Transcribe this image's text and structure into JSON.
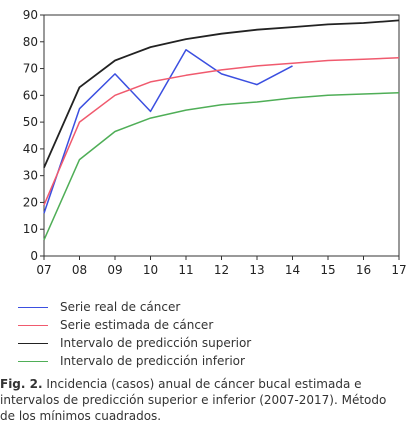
{
  "chart_data": {
    "type": "line",
    "x": [
      "07",
      "08",
      "09",
      "10",
      "11",
      "12",
      "13",
      "14",
      "15",
      "16",
      "17"
    ],
    "ylim": [
      0,
      90
    ],
    "yticks": [
      0,
      10,
      20,
      30,
      40,
      50,
      60,
      70,
      80,
      90
    ],
    "grid": false,
    "series": [
      {
        "name": "Serie real de cáncer",
        "color": "#3b4fe0",
        "values": [
          16,
          55,
          68,
          54,
          77,
          68,
          64,
          71,
          null,
          null,
          null
        ]
      },
      {
        "name": "Serie estimada de cáncer",
        "color": "#f05a6e",
        "values": [
          19,
          50,
          60,
          65,
          67.5,
          69.5,
          71,
          72,
          73,
          73.5,
          74
        ]
      },
      {
        "name": "Intervalo de predicción superior",
        "color": "#222222",
        "values": [
          33,
          63,
          73,
          78,
          81,
          83,
          84.5,
          85.5,
          86.5,
          87,
          88
        ]
      },
      {
        "name": "Intervalo de predicción inferior",
        "color": "#4fae57",
        "values": [
          6,
          36,
          46.5,
          51.5,
          54.5,
          56.5,
          57.5,
          59,
          60,
          60.5,
          61
        ]
      }
    ]
  },
  "caption": {
    "label": "Fig. 2.",
    "lines": [
      "Incidencia (casos) anual de cáncer bucal estimada e",
      "intervalos de predicción superior e inferior (2007-2017). Método",
      "de los mínimos cuadrados."
    ]
  }
}
